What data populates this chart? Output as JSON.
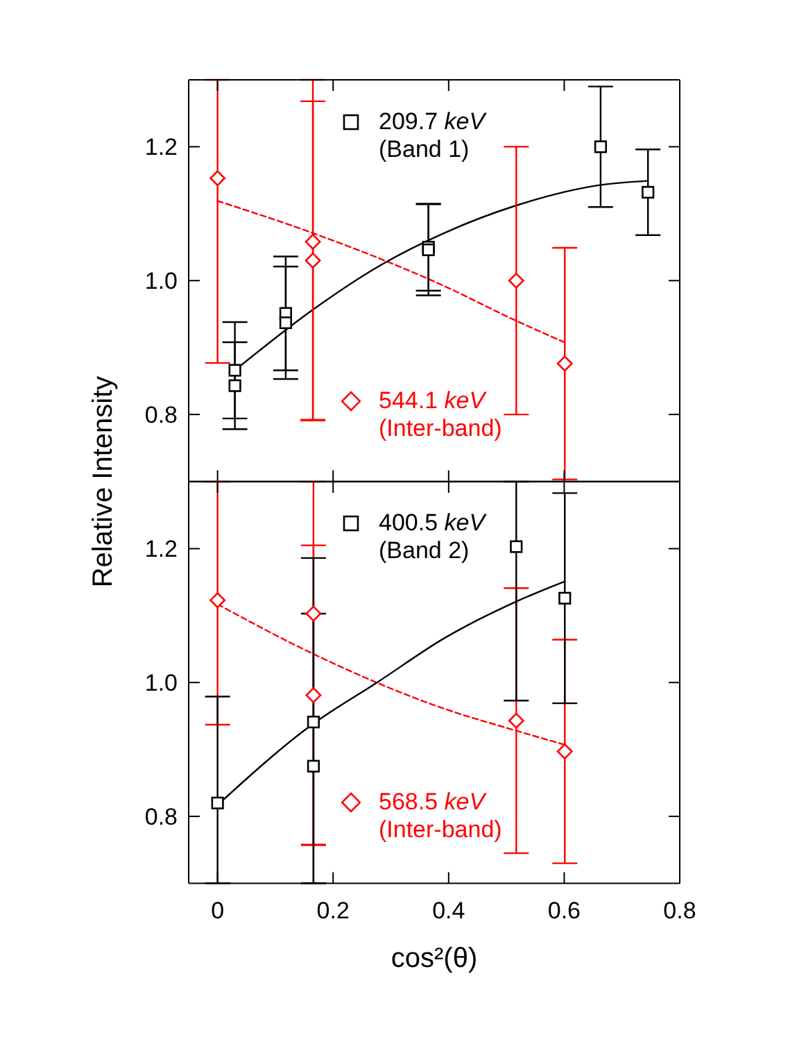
{
  "chart_data": [
    {
      "type": "scatter",
      "ylabel": "Relative Intensity",
      "xlim": [
        -0.05,
        0.8
      ],
      "xticks": [
        0,
        0.2,
        0.4,
        0.6,
        0.8
      ],
      "ylim": [
        0.7,
        1.3
      ],
      "yticks": [
        {
          "value": 0.8,
          "label": "0.8"
        },
        {
          "value": 1,
          "label": "1.0"
        },
        {
          "value": 1.2,
          "label": "1.2"
        }
      ],
      "tick_labels": "y",
      "legend": "left",
      "series": [
        {
          "name": "209.7 keV (Band 1)",
          "type": "scatter",
          "marker": "square",
          "color": "#000000",
          "x": [
            0.03,
            0.03,
            0.118,
            0.118,
            0.365,
            0.365,
            0.663,
            0.745
          ],
          "values": [
            0.866,
            0.843,
            0.951,
            0.937,
            1.05,
            1.046,
            1.2,
            1.132
          ],
          "errors": [
            0.072,
            0.065,
            0.085,
            0.084,
            0.065,
            0.068,
            0.09,
            0.064
          ]
        },
        {
          "name": "544.1 keV (Inter-band)",
          "type": "scatter",
          "marker": "diamond",
          "color": "#ff0000",
          "x": [
            0,
            0.165,
            0.165,
            0.517,
            0.601
          ],
          "values": [
            1.153,
            1.058,
            1.03,
            1,
            0.876
          ],
          "errors": [
            [
              0.877,
              1.3
            ],
            [
              0.791,
              1.3
            ],
            0.238,
            0.2,
            0.173
          ]
        },
        {
          "type": "line",
          "color": "#000000",
          "line_style": "solid",
          "x": [
            0.03,
            0.164,
            0.288,
            0.392,
            0.516,
            0.664,
            0.744
          ],
          "values": [
            0.866,
            0.956,
            1.026,
            1.071,
            1.112,
            1.143,
            1.149
          ]
        },
        {
          "type": "line",
          "color": "#ff0000",
          "line_style": "dashed",
          "x": [
            0,
            0.165,
            0.392,
            0.512,
            0.6
          ],
          "values": [
            1.119,
            1.071,
            0.992,
            0.942,
            0.908
          ]
        }
      ]
    },
    {
      "type": "scatter",
      "xlabel": "cos²(θ)",
      "xlim": [
        -0.05,
        0.8
      ],
      "xticks": [
        0,
        0.2,
        0.4,
        0.6,
        0.8
      ],
      "ylim": [
        0.7,
        1.3
      ],
      "yticks": [
        {
          "value": 0.8,
          "label": "0.8"
        },
        {
          "value": 1,
          "label": "1.0"
        },
        {
          "value": 1.2,
          "label": "1.2"
        }
      ],
      "legend": "left",
      "series": [
        {
          "name": "400.5 keV (Band 2)",
          "type": "scatter",
          "marker": "square",
          "color": "#000000",
          "x": [
            0,
            0.166,
            0.166,
            0.517,
            0.601
          ],
          "values": [
            0.82,
            0.941,
            0.875,
            1.203,
            1.126
          ],
          "errors": [
            [
              0.7,
              0.979
            ],
            [
              0.7,
              1.186
            ],
            [
              0.7,
              1.103
            ],
            [
              0.973,
              1.3
            ],
            0.157
          ]
        },
        {
          "name": "568.5 keV (Inter-band)",
          "type": "scatter",
          "marker": "diamond",
          "color": "#ff0000",
          "x": [
            0,
            0.166,
            0.166,
            0.517,
            0.601
          ],
          "values": [
            1.123,
            1.103,
            0.981,
            0.943,
            0.897
          ],
          "errors": [
            [
              0.937,
              1.3
            ],
            [
              0.758,
              1.3
            ],
            0.224,
            0.198,
            0.167
          ]
        },
        {
          "type": "line",
          "color": "#000000",
          "line_style": "solid",
          "x": [
            0,
            0.165,
            0.276,
            0.392,
            0.517,
            0.601
          ],
          "values": [
            0.817,
            0.938,
            1,
            1.066,
            1.121,
            1.151
          ]
        },
        {
          "type": "line",
          "color": "#ff0000",
          "line_style": "dashed",
          "x": [
            0,
            0.165,
            0.392,
            0.517,
            0.601
          ],
          "values": [
            1.117,
            1.043,
            0.961,
            0.928,
            0.907
          ]
        }
      ]
    }
  ]
}
